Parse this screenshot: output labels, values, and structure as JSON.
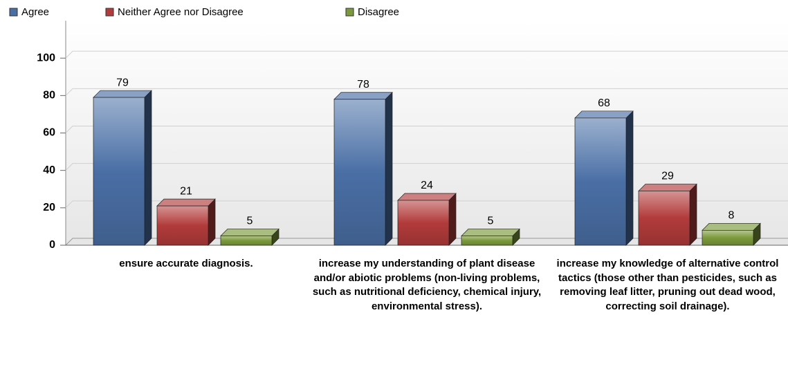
{
  "chart_data": {
    "type": "bar",
    "categories": [
      "ensure accurate diagnosis.",
      "increase my understanding of plant disease and/or abiotic problems (non-living problems, such as nutritional deficiency, chemical injury, environmental stress).",
      "increase my knowledge of alternative control tactics (those other than pesticides, such as removing leaf litter, pruning out dead wood, correcting soil drainage)."
    ],
    "series": [
      {
        "name": "Agree",
        "color": "#4a6fa5",
        "values": [
          79,
          78,
          68
        ]
      },
      {
        "name": "Neither Agree nor Disagree",
        "color": "#b23b3b",
        "values": [
          21,
          24,
          29
        ]
      },
      {
        "name": "Disagree",
        "color": "#7c9a3c",
        "values": [
          5,
          5,
          8
        ]
      }
    ],
    "ylim": [
      0,
      120
    ],
    "yticks": [
      0,
      20,
      40,
      60,
      80,
      100
    ],
    "grid": true
  }
}
